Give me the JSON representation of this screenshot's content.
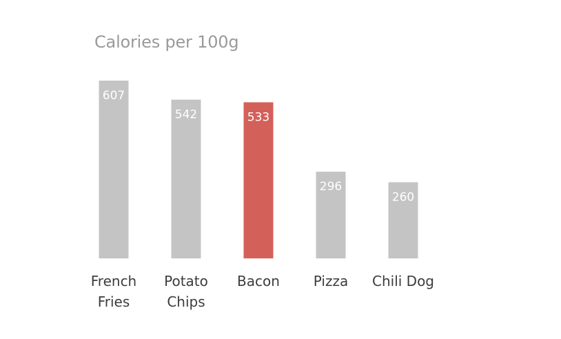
{
  "chart_data": {
    "type": "bar",
    "title": "Calories per 100g",
    "categories": [
      [
        "French",
        "Fries"
      ],
      [
        "Potato",
        "Chips"
      ],
      [
        "Bacon"
      ],
      [
        "Pizza"
      ],
      [
        "Chili Dog"
      ]
    ],
    "values": [
      607,
      542,
      533,
      296,
      260
    ],
    "data_labels": [
      "607",
      "542",
      "533",
      "296",
      "260"
    ],
    "highlight_index": 2,
    "colors": {
      "bar": "#c4c4c4",
      "highlight": "#d4605a",
      "value_label": "#ffffff",
      "category_label": "#3c3c3c",
      "title": "#9a9a9a"
    },
    "ylim": [
      0,
      607
    ],
    "grid": false,
    "legend": "none",
    "xlabel": "",
    "ylabel": ""
  }
}
